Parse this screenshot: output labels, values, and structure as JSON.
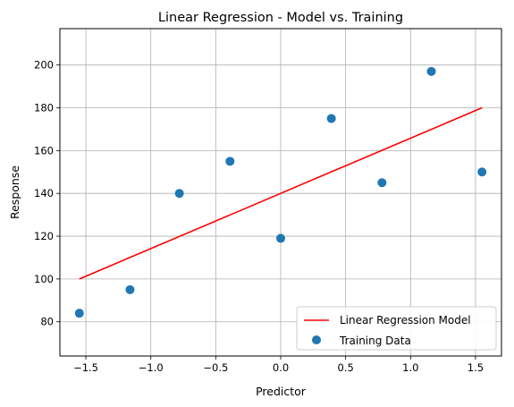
{
  "chart_data": {
    "type": "scatter",
    "title": "Linear Regression - Model vs. Training",
    "xlabel": "Predictor",
    "ylabel": "Response",
    "xlim": [
      -1.7,
      1.7
    ],
    "ylim": [
      64,
      217
    ],
    "xticks": [
      -1.5,
      -1.0,
      -0.5,
      0.0,
      0.5,
      1.0,
      1.5
    ],
    "xtick_labels": [
      "−1.5",
      "−1.0",
      "−0.5",
      "0.0",
      "0.5",
      "1.0",
      "1.5"
    ],
    "yticks": [
      80,
      100,
      120,
      140,
      160,
      180,
      200
    ],
    "ytick_labels": [
      "80",
      "100",
      "120",
      "140",
      "160",
      "180",
      "200"
    ],
    "grid": true,
    "legend_position": "bottom-right",
    "series": [
      {
        "name": "Linear Regression Model",
        "kind": "line",
        "color": "#ff0000",
        "x": [
          -1.55,
          1.55
        ],
        "y": [
          100,
          180
        ]
      },
      {
        "name": "Training Data",
        "kind": "scatter",
        "color": "#1f77b4",
        "x": [
          -1.55,
          -1.16,
          -0.78,
          -0.39,
          0.0,
          0.39,
          0.78,
          1.16,
          1.55
        ],
        "y": [
          84,
          95,
          140,
          155,
          119,
          175,
          145,
          197,
          150
        ]
      }
    ]
  }
}
